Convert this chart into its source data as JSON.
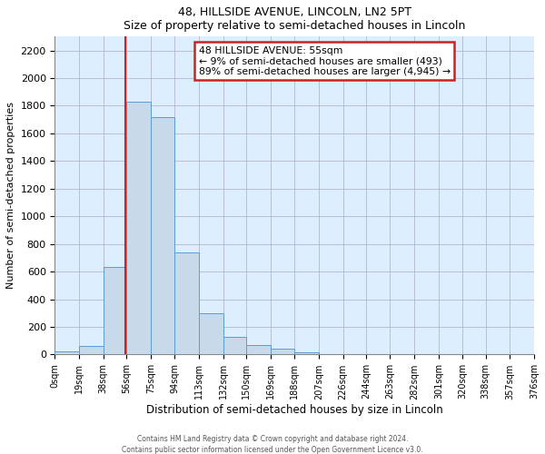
{
  "title": "48, HILLSIDE AVENUE, LINCOLN, LN2 5PT",
  "subtitle": "Size of property relative to semi-detached houses in Lincoln",
  "xlabel": "Distribution of semi-detached houses by size in Lincoln",
  "ylabel": "Number of semi-detached properties",
  "bar_color": "#c8daea",
  "bar_edge_color": "#5b9bd5",
  "plot_bg_color": "#ddeeff",
  "annotation_border_color": "#cc2222",
  "red_line_x": 55,
  "annotation_title": "48 HILLSIDE AVENUE: 55sqm",
  "annotation_line1": "← 9% of semi-detached houses are smaller (493)",
  "annotation_line2": "89% of semi-detached houses are larger (4,945) →",
  "footer1": "Contains HM Land Registry data © Crown copyright and database right 2024.",
  "footer2": "Contains public sector information licensed under the Open Government Licence v3.0.",
  "bin_edges": [
    0,
    19,
    38,
    56,
    75,
    94,
    113,
    132,
    150,
    169,
    188,
    207,
    226,
    244,
    263,
    282,
    301,
    320,
    338,
    357,
    376
  ],
  "bin_labels": [
    "0sqm",
    "19sqm",
    "38sqm",
    "56sqm",
    "75sqm",
    "94sqm",
    "113sqm",
    "132sqm",
    "150sqm",
    "169sqm",
    "188sqm",
    "207sqm",
    "226sqm",
    "244sqm",
    "263sqm",
    "282sqm",
    "301sqm",
    "320sqm",
    "338sqm",
    "357sqm",
    "376sqm"
  ],
  "counts": [
    20,
    60,
    630,
    1830,
    1720,
    740,
    300,
    130,
    70,
    45,
    15,
    5,
    0,
    0,
    0,
    0,
    0,
    5,
    0,
    0
  ],
  "ylim": [
    0,
    2300
  ],
  "xlim": [
    0,
    376
  ],
  "yticks": [
    0,
    200,
    400,
    600,
    800,
    1000,
    1200,
    1400,
    1600,
    1800,
    2000,
    2200
  ]
}
